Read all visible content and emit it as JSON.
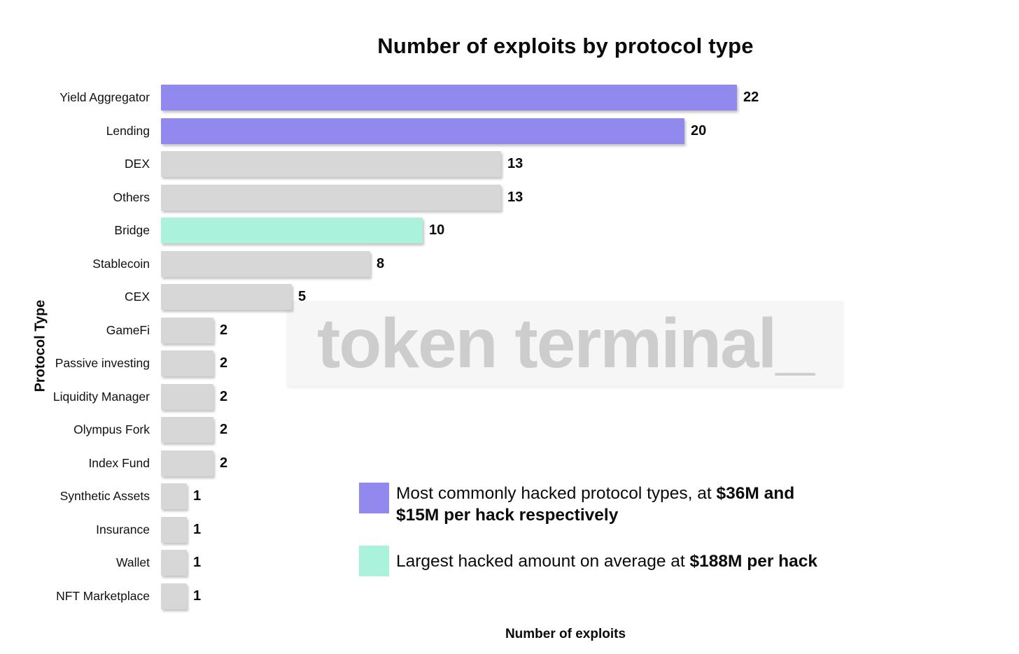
{
  "colors": {
    "purple": "#9189ee",
    "teal": "#aaf2dc",
    "gray": "#d7d7d7",
    "background": "#ffffff",
    "watermark_text": "#cdcdcd",
    "watermark_band": "#f6f6f6",
    "text": "#0b0b0b"
  },
  "watermark": {
    "text": "token terminal_"
  },
  "chart_data": {
    "type": "bar",
    "orientation": "horizontal",
    "title": "Number of exploits by protocol type",
    "xlabel": "Number of exploits",
    "ylabel": "Protocol Type",
    "xlim": [
      0,
      22
    ],
    "grid": false,
    "value_labels": "end-of-bar",
    "categories": [
      "Yield Aggregator",
      "Lending",
      "DEX",
      "Others",
      "Bridge",
      "Stablecoin",
      "CEX",
      "GameFi",
      "Passive investing",
      "Liquidity Manager",
      "Olympus Fork",
      "Index Fund",
      "Synthetic Assets",
      "Insurance",
      "Wallet",
      "NFT Marketplace"
    ],
    "values": [
      22,
      20,
      13,
      13,
      10,
      8,
      5,
      2,
      2,
      2,
      2,
      2,
      1,
      1,
      1,
      1
    ],
    "bars": [
      {
        "label": "Yield Aggregator",
        "value": 22,
        "color": "purple"
      },
      {
        "label": "Lending",
        "value": 20,
        "color": "purple"
      },
      {
        "label": "DEX",
        "value": 13,
        "color": "gray"
      },
      {
        "label": "Others",
        "value": 13,
        "color": "gray"
      },
      {
        "label": "Bridge",
        "value": 10,
        "color": "teal"
      },
      {
        "label": "Stablecoin",
        "value": 8,
        "color": "gray"
      },
      {
        "label": "CEX",
        "value": 5,
        "color": "gray"
      },
      {
        "label": "GameFi",
        "value": 2,
        "color": "gray"
      },
      {
        "label": "Passive investing",
        "value": 2,
        "color": "gray"
      },
      {
        "label": "Liquidity Manager",
        "value": 2,
        "color": "gray"
      },
      {
        "label": "Olympus Fork",
        "value": 2,
        "color": "gray"
      },
      {
        "label": "Index Fund",
        "value": 2,
        "color": "gray"
      },
      {
        "label": "Synthetic Assets",
        "value": 1,
        "color": "gray"
      },
      {
        "label": "Insurance",
        "value": 1,
        "color": "gray"
      },
      {
        "label": "Wallet",
        "value": 1,
        "color": "gray"
      },
      {
        "label": "NFT Marketplace",
        "value": 1,
        "color": "gray"
      }
    ],
    "legend_position": "lower-right-inside",
    "legend": [
      {
        "color": "purple",
        "text_normal": "Most commonly hacked protocol types, at ",
        "text_bold": "$36M and $15M per hack respectively"
      },
      {
        "color": "teal",
        "text_normal": "Largest hacked amount on average at ",
        "text_bold": "$188M per hack"
      }
    ]
  }
}
